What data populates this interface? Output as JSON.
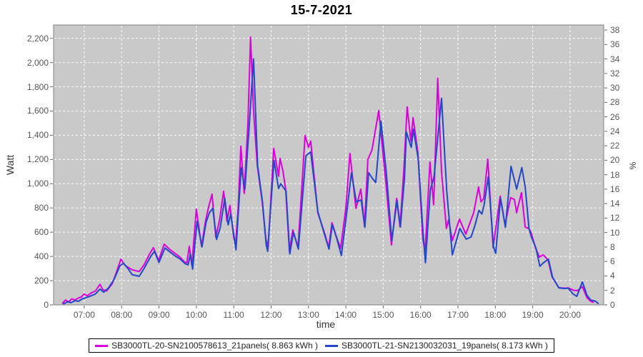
{
  "title": "15-7-2021",
  "axes": {
    "left": {
      "label": "Watt",
      "tick_values": [
        0,
        200,
        400,
        600,
        800,
        1000,
        1200,
        1400,
        1600,
        1800,
        2000,
        2200
      ],
      "tick_labels": [
        "0",
        "200",
        "400",
        "600",
        "800",
        "1,000",
        "1,200",
        "1,400",
        "1,600",
        "1,800",
        "2,000",
        "2,200"
      ]
    },
    "right": {
      "label": "%",
      "tick_values": [
        0,
        2,
        4,
        6,
        8,
        10,
        12,
        14,
        16,
        18,
        20,
        22,
        24,
        26,
        28,
        30,
        32,
        34,
        36,
        38
      ]
    },
    "x": {
      "label": "time",
      "tick_values": [
        7,
        8,
        9,
        10,
        11,
        12,
        13,
        14,
        15,
        16,
        17,
        18,
        19,
        20
      ],
      "tick_labels": [
        "07:00",
        "08:00",
        "09:00",
        "10:00",
        "11:00",
        "12:00",
        "13:00",
        "14:00",
        "15:00",
        "16:00",
        "17:00",
        "18:00",
        "19:00",
        "20:00"
      ]
    }
  },
  "legend": [
    {
      "label": "SB3000TL-20-SN2100578613_21panels( 8.863 kWh )",
      "color": "#dc00dc"
    },
    {
      "label": "SB3000TL-21-SN2130032031_19panels( 8.173 kWh )",
      "color": "#2546c9"
    }
  ],
  "style": {
    "plot_bg": "#c9c9c9",
    "plot_border": "#7f7f7f",
    "grid_color": "#ffffff",
    "tick_color": "#666666"
  },
  "chart_data": {
    "type": "line",
    "title": "15-7-2021",
    "xlabel": "time",
    "ylabel": "Watt",
    "ylabel_right": "%",
    "x_axis_hours_domain": [
      6.18,
      20.9
    ],
    "ylim_watt": [
      0,
      2310
    ],
    "ylim_percent": [
      0,
      38.7
    ],
    "grid": true,
    "legend_position": "bottom-center",
    "series": [
      {
        "name": "SB3000TL-20-SN2100578613_21panels( 8.863 kWh )",
        "color": "#dc00dc",
        "daily_total_kwh": 8.863,
        "points": [
          [
            6.42,
            15
          ],
          [
            6.5,
            40
          ],
          [
            6.58,
            25
          ],
          [
            6.67,
            50
          ],
          [
            6.75,
            40
          ],
          [
            6.83,
            55
          ],
          [
            6.92,
            65
          ],
          [
            7.0,
            90
          ],
          [
            7.08,
            75
          ],
          [
            7.17,
            95
          ],
          [
            7.3,
            115
          ],
          [
            7.42,
            170
          ],
          [
            7.5,
            125
          ],
          [
            7.6,
            115
          ],
          [
            7.75,
            175
          ],
          [
            7.85,
            260
          ],
          [
            7.98,
            378
          ],
          [
            8.08,
            330
          ],
          [
            8.17,
            310
          ],
          [
            8.28,
            290
          ],
          [
            8.47,
            275
          ],
          [
            8.6,
            330
          ],
          [
            8.75,
            420
          ],
          [
            8.85,
            472
          ],
          [
            8.99,
            366
          ],
          [
            9.14,
            501
          ],
          [
            9.3,
            455
          ],
          [
            9.45,
            420
          ],
          [
            9.56,
            395
          ],
          [
            9.68,
            355
          ],
          [
            9.75,
            348
          ],
          [
            9.81,
            484
          ],
          [
            9.88,
            324
          ],
          [
            10.0,
            790
          ],
          [
            10.14,
            483
          ],
          [
            10.25,
            700
          ],
          [
            10.33,
            810
          ],
          [
            10.42,
            914
          ],
          [
            10.52,
            560
          ],
          [
            10.62,
            700
          ],
          [
            10.73,
            938
          ],
          [
            10.82,
            690
          ],
          [
            10.9,
            820
          ],
          [
            11.0,
            560
          ],
          [
            11.05,
            495
          ],
          [
            11.12,
            800
          ],
          [
            11.19,
            1310
          ],
          [
            11.28,
            920
          ],
          [
            11.38,
            1500
          ],
          [
            11.45,
            2210
          ],
          [
            11.53,
            1600
          ],
          [
            11.63,
            1151
          ],
          [
            11.76,
            856
          ],
          [
            11.86,
            543
          ],
          [
            11.92,
            480
          ],
          [
            12.0,
            900
          ],
          [
            12.07,
            1292
          ],
          [
            12.2,
            1062
          ],
          [
            12.24,
            1209
          ],
          [
            12.32,
            1100
          ],
          [
            12.39,
            955
          ],
          [
            12.49,
            440
          ],
          [
            12.58,
            619
          ],
          [
            12.72,
            472
          ],
          [
            12.91,
            1398
          ],
          [
            13.0,
            1300
          ],
          [
            13.06,
            1351
          ],
          [
            13.25,
            761
          ],
          [
            13.44,
            584
          ],
          [
            13.54,
            472
          ],
          [
            13.63,
            678
          ],
          [
            13.75,
            560
          ],
          [
            13.86,
            466
          ],
          [
            14.0,
            800
          ],
          [
            14.11,
            1250
          ],
          [
            14.27,
            796
          ],
          [
            14.4,
            955
          ],
          [
            14.5,
            649
          ],
          [
            14.59,
            1200
          ],
          [
            14.7,
            1280
          ],
          [
            14.88,
            1604
          ],
          [
            15.07,
            1014
          ],
          [
            15.22,
            495
          ],
          [
            15.36,
            879
          ],
          [
            15.45,
            643
          ],
          [
            15.55,
            1100
          ],
          [
            15.64,
            1634
          ],
          [
            15.74,
            1351
          ],
          [
            15.8,
            1545
          ],
          [
            15.93,
            1250
          ],
          [
            16.06,
            543
          ],
          [
            16.12,
            442
          ],
          [
            16.25,
            1180
          ],
          [
            16.35,
            826
          ],
          [
            16.46,
            1870
          ],
          [
            16.56,
            1100
          ],
          [
            16.69,
            631
          ],
          [
            16.75,
            702
          ],
          [
            16.85,
            531
          ],
          [
            17.04,
            708
          ],
          [
            17.21,
            584
          ],
          [
            17.42,
            761
          ],
          [
            17.55,
            973
          ],
          [
            17.62,
            850
          ],
          [
            17.69,
            879
          ],
          [
            17.8,
            1203
          ],
          [
            17.94,
            472
          ],
          [
            18.13,
            897
          ],
          [
            18.26,
            661
          ],
          [
            18.41,
            885
          ],
          [
            18.51,
            870
          ],
          [
            18.57,
            761
          ],
          [
            18.7,
            926
          ],
          [
            18.8,
            643
          ],
          [
            18.89,
            631
          ],
          [
            18.95,
            602
          ],
          [
            19.08,
            466
          ],
          [
            19.18,
            395
          ],
          [
            19.28,
            413
          ],
          [
            19.41,
            370
          ],
          [
            19.52,
            230
          ],
          [
            19.7,
            142
          ],
          [
            19.85,
            138
          ],
          [
            19.95,
            140
          ],
          [
            20.1,
            120
          ],
          [
            20.2,
            118
          ],
          [
            20.33,
            150
          ],
          [
            20.45,
            60
          ],
          [
            20.55,
            30
          ],
          [
            20.62,
            22
          ]
        ]
      },
      {
        "name": "SB3000TL-21-SN2130032031_19panels( 8.173 kWh )",
        "color": "#2546c9",
        "daily_total_kwh": 8.173,
        "points": [
          [
            6.45,
            8
          ],
          [
            6.55,
            25
          ],
          [
            6.65,
            18
          ],
          [
            6.75,
            35
          ],
          [
            6.85,
            30
          ],
          [
            6.95,
            50
          ],
          [
            7.05,
            60
          ],
          [
            7.15,
            70
          ],
          [
            7.3,
            90
          ],
          [
            7.42,
            130
          ],
          [
            7.52,
            105
          ],
          [
            7.65,
            140
          ],
          [
            7.8,
            210
          ],
          [
            7.95,
            320
          ],
          [
            8.05,
            345
          ],
          [
            8.17,
            300
          ],
          [
            8.28,
            250
          ],
          [
            8.47,
            236
          ],
          [
            8.6,
            300
          ],
          [
            8.78,
            400
          ],
          [
            8.88,
            442
          ],
          [
            9.0,
            350
          ],
          [
            9.16,
            470
          ],
          [
            9.3,
            435
          ],
          [
            9.45,
            400
          ],
          [
            9.56,
            380
          ],
          [
            9.7,
            340
          ],
          [
            9.78,
            330
          ],
          [
            9.84,
            420
          ],
          [
            9.9,
            295
          ],
          [
            10.02,
            690
          ],
          [
            10.15,
            478
          ],
          [
            10.26,
            680
          ],
          [
            10.35,
            760
          ],
          [
            10.44,
            796
          ],
          [
            10.54,
            540
          ],
          [
            10.64,
            640
          ],
          [
            10.76,
            879
          ],
          [
            10.85,
            660
          ],
          [
            10.92,
            750
          ],
          [
            11.06,
            454
          ],
          [
            11.2,
            1133
          ],
          [
            11.3,
            955
          ],
          [
            11.42,
            1500
          ],
          [
            11.53,
            2030
          ],
          [
            11.64,
            1150
          ],
          [
            11.77,
            850
          ],
          [
            11.87,
            495
          ],
          [
            11.91,
            442
          ],
          [
            12.0,
            850
          ],
          [
            12.08,
            1192
          ],
          [
            12.2,
            960
          ],
          [
            12.26,
            1000
          ],
          [
            12.4,
            938
          ],
          [
            12.5,
            420
          ],
          [
            12.6,
            600
          ],
          [
            12.73,
            460
          ],
          [
            12.93,
            1230
          ],
          [
            13.06,
            1262
          ],
          [
            13.25,
            770
          ],
          [
            13.44,
            570
          ],
          [
            13.55,
            460
          ],
          [
            13.64,
            661
          ],
          [
            13.76,
            545
          ],
          [
            13.88,
            407
          ],
          [
            14.02,
            750
          ],
          [
            14.15,
            1091
          ],
          [
            14.28,
            850
          ],
          [
            14.41,
            867
          ],
          [
            14.51,
            640
          ],
          [
            14.61,
            1091
          ],
          [
            14.72,
            1040
          ],
          [
            14.8,
            1010
          ],
          [
            14.94,
            1516
          ],
          [
            15.08,
            1100
          ],
          [
            15.23,
            531
          ],
          [
            15.37,
            861
          ],
          [
            15.46,
            643
          ],
          [
            15.57,
            1050
          ],
          [
            15.62,
            1427
          ],
          [
            15.75,
            1300
          ],
          [
            15.81,
            1450
          ],
          [
            15.94,
            1200
          ],
          [
            16.07,
            584
          ],
          [
            16.13,
            348
          ],
          [
            16.26,
            950
          ],
          [
            16.36,
            1056
          ],
          [
            16.56,
            1705
          ],
          [
            16.7,
            938
          ],
          [
            16.85,
            413
          ],
          [
            17.05,
            631
          ],
          [
            17.22,
            543
          ],
          [
            17.35,
            560
          ],
          [
            17.45,
            650
          ],
          [
            17.56,
            780
          ],
          [
            17.64,
            750
          ],
          [
            17.7,
            826
          ],
          [
            17.81,
            1056
          ],
          [
            17.95,
            480
          ],
          [
            18.01,
            425
          ],
          [
            18.14,
            880
          ],
          [
            18.27,
            640
          ],
          [
            18.42,
            1144
          ],
          [
            18.57,
            955
          ],
          [
            18.71,
            1133
          ],
          [
            18.8,
            973
          ],
          [
            18.9,
            631
          ],
          [
            18.96,
            566
          ],
          [
            19.09,
            466
          ],
          [
            19.19,
            319
          ],
          [
            19.29,
            348
          ],
          [
            19.42,
            378
          ],
          [
            19.53,
            230
          ],
          [
            19.7,
            140
          ],
          [
            19.85,
            135
          ],
          [
            19.95,
            138
          ],
          [
            20.08,
            90
          ],
          [
            20.18,
            70
          ],
          [
            20.33,
            190
          ],
          [
            20.45,
            80
          ],
          [
            20.55,
            40
          ],
          [
            20.68,
            30
          ],
          [
            20.75,
            12
          ]
        ]
      }
    ]
  }
}
